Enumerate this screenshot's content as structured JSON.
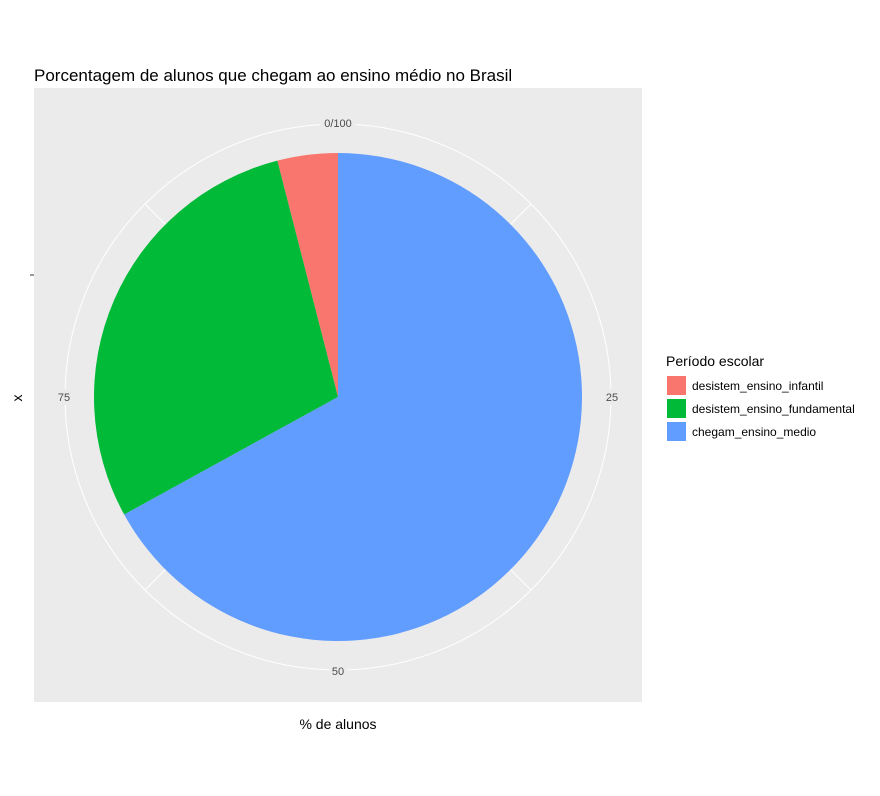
{
  "chart_data": {
    "type": "pie",
    "title": "Porcentagem de alunos que chegam ao ensino médio no Brasil",
    "xlabel": "% de alunos",
    "ylabel": "x",
    "angle_ticks": [
      "0/100",
      "25",
      "50",
      "75"
    ],
    "angle_tick_values": [
      0,
      25,
      50,
      75
    ],
    "legend_title": "Período escolar",
    "legend_position": "right",
    "categories": [
      "desistem_ensino_infantil",
      "desistem_ensino_fundamental",
      "chegam_ensino_medio"
    ],
    "values": [
      4,
      29,
      67
    ],
    "colors": [
      "#F8766D",
      "#00BA38",
      "#619CFF"
    ],
    "grid": true,
    "background": "#EBEBEB"
  }
}
